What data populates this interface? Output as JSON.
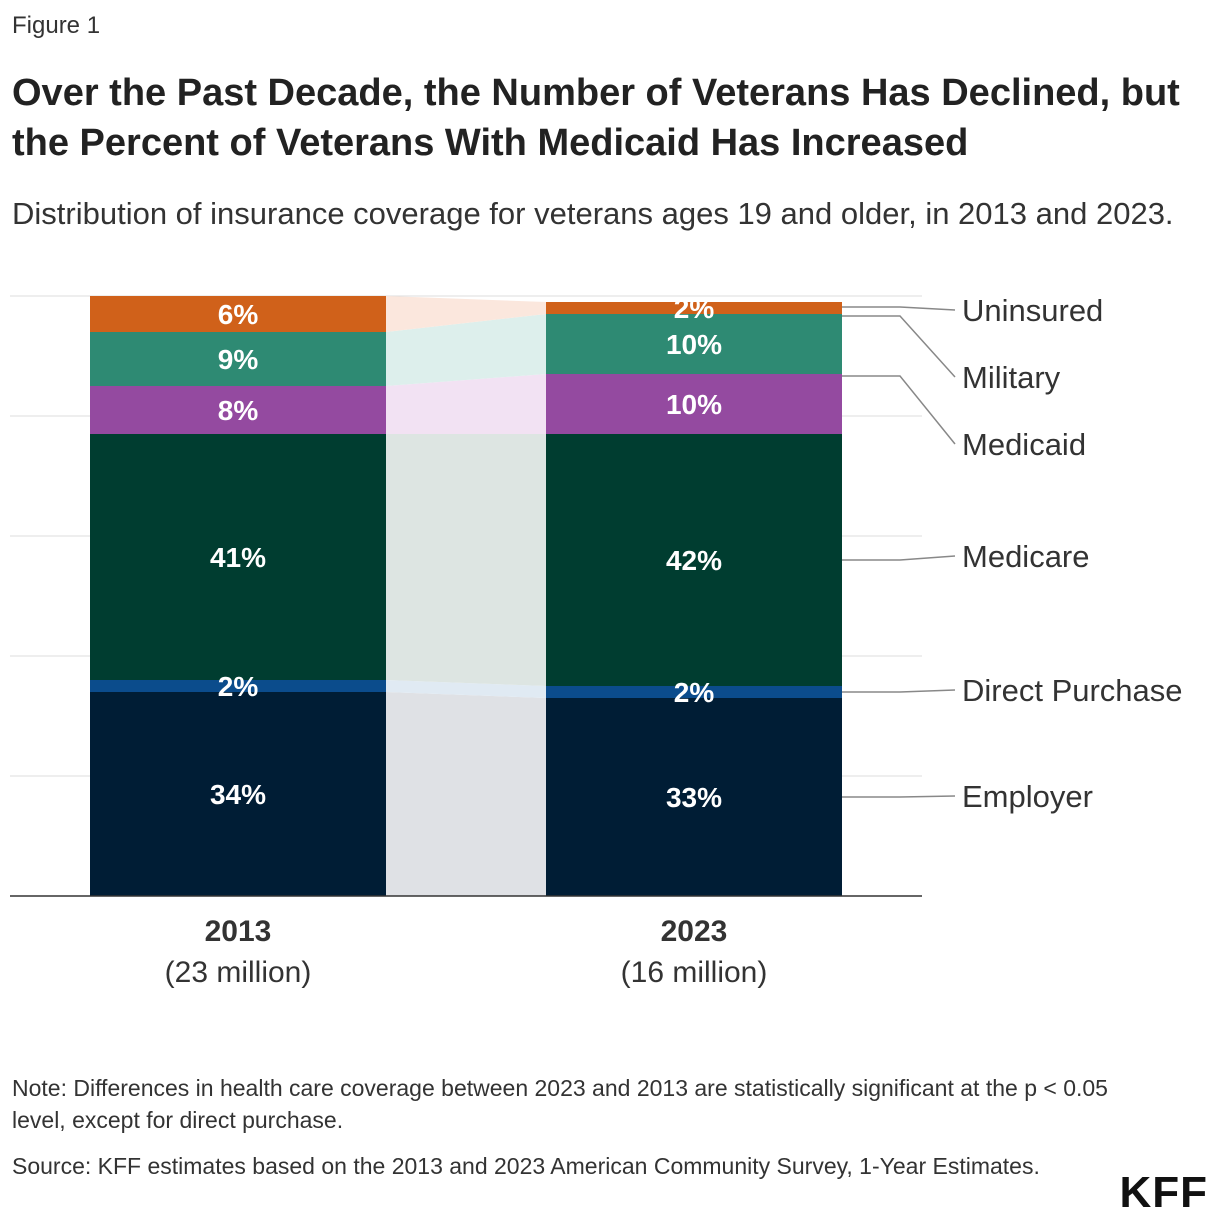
{
  "figure_label": "Figure 1",
  "title": "Over the Past Decade, the Number of Veterans Has Declined, but the Percent of Veterans With Medicaid Has Increased",
  "subtitle": "Distribution of insurance coverage for veterans ages 19 and older, in 2013 and 2023.",
  "note": "Note: Differences in health care coverage between 2023 and 2013 are statistically significant at the p < 0.05 level, except for direct purchase.",
  "source": "Source: KFF estimates based on the 2013 and 2023 American Community Survey, 1-Year Estimates.",
  "logo": "KFF",
  "chart_data": {
    "type": "bar",
    "stacked": true,
    "normalized_percent": true,
    "categories": [
      "2013",
      "2023"
    ],
    "category_sublabels": [
      "(23 million)",
      "(16 million)"
    ],
    "ylim": [
      0,
      100
    ],
    "grid": true,
    "series": [
      {
        "name": "Employer",
        "values": [
          34,
          33
        ],
        "labels": [
          "34%",
          "33%"
        ],
        "color": "#001d35"
      },
      {
        "name": "Direct Purchase",
        "values": [
          2,
          2
        ],
        "labels": [
          "2%",
          "2%"
        ],
        "color": "#0b4c8c"
      },
      {
        "name": "Medicare",
        "values": [
          41,
          42
        ],
        "labels": [
          "41%",
          "42%"
        ],
        "color": "#003d30"
      },
      {
        "name": "Medicaid",
        "values": [
          8,
          10
        ],
        "labels": [
          "8%",
          "10%"
        ],
        "color": "#944aa0"
      },
      {
        "name": "Military",
        "values": [
          9,
          10
        ],
        "labels": [
          "9%",
          "10%"
        ],
        "color": "#2e8a73"
      },
      {
        "name": "Uninsured",
        "values": [
          6,
          2
        ],
        "labels": [
          "6%",
          "2%"
        ],
        "color": "#d0611a"
      }
    ],
    "connector_colors": [
      "#dfe1e5",
      "#e0eaf3",
      "#dde5e2",
      "#f2e2f3",
      "#ddefec",
      "#fbe7dd"
    ]
  }
}
